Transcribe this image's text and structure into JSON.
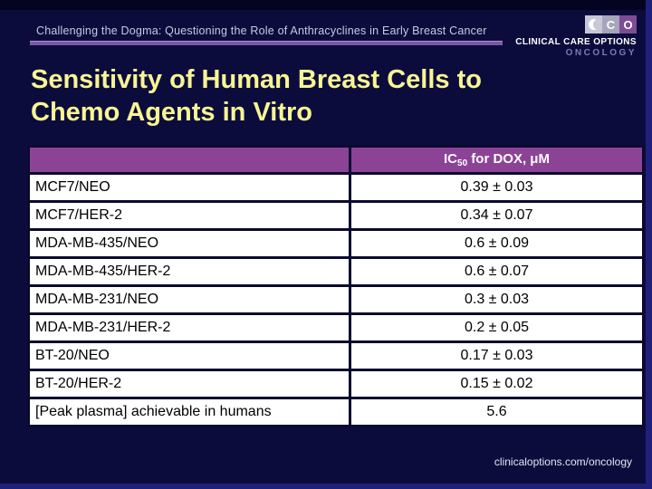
{
  "colors": {
    "background": "#0C0C3C",
    "table_header_purple": "#8C4396",
    "rule_purple": "#7A58A8",
    "title_yellow": "#F8F594",
    "edge_blue": "#20207B"
  },
  "header": {
    "program_title": "Challenging the Dogma: Questioning the Role of Anthracyclines in Early Breast Cancer",
    "logo": {
      "segment_c": "C",
      "segment_o": "O",
      "org_name": "CLINICAL CARE OPTIONS",
      "division": "ONCOLOGY"
    }
  },
  "title_lines": {
    "line1": "Sensitivity of Human Breast Cells to",
    "line2": "Chemo Agents in Vitro"
  },
  "table": {
    "header": {
      "ic_prefix": "IC",
      "ic_subscript": "50",
      "ic_suffix": " for DOX, μM"
    },
    "rows": [
      {
        "label": "MCF7/NEO",
        "value": "0.39 ± 0.03"
      },
      {
        "label": "MCF7/HER-2",
        "value": "0.34 ± 0.07"
      },
      {
        "label": "MDA-MB-435/NEO",
        "value": "0.6 ± 0.09"
      },
      {
        "label": "MDA-MB-435/HER-2",
        "value": "0.6 ± 0.07"
      },
      {
        "label": "MDA-MB-231/NEO",
        "value": "0.3 ± 0.03"
      },
      {
        "label": "MDA-MB-231/HER-2",
        "value": "0.2 ± 0.05"
      },
      {
        "label": "BT-20/NEO",
        "value": "0.17 ± 0.03"
      },
      {
        "label": "BT-20/HER-2",
        "value": "0.15 ± 0.02"
      },
      {
        "label": "[Peak plasma] achievable in humans",
        "value": "5.6"
      }
    ]
  },
  "footer": {
    "url": "clinicaloptions.com/oncology"
  }
}
